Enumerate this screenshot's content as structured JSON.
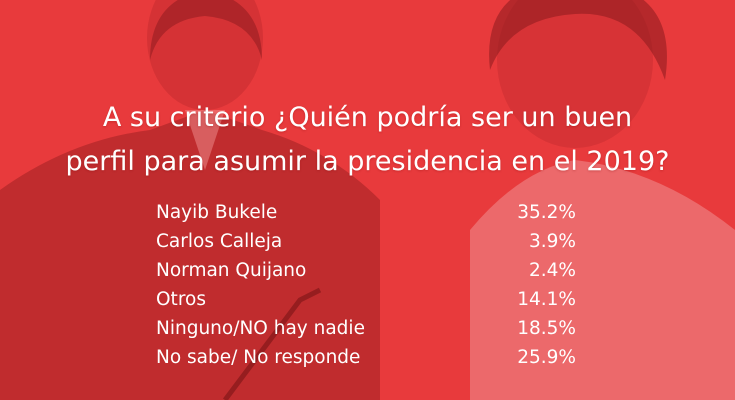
{
  "title_lines": [
    "A su criterio ¿Quién podría ser un buen",
    "perfil para asumir la presidencia en el 2019?"
  ],
  "colors": {
    "background": "#e83a3c",
    "text": "#ffffff"
  },
  "chart_data": {
    "type": "table",
    "title": "A su criterio ¿Quién podría ser un buen perfil para asumir la presidencia en el 2019?",
    "categories": [
      "Nayib Bukele",
      "Carlos Calleja",
      "Norman Quijano",
      "Otros",
      "Ninguno/NO hay nadie",
      "No sabe/ No responde"
    ],
    "values": [
      35.2,
      3.9,
      2.4,
      14.1,
      18.5,
      25.9
    ],
    "value_labels": [
      "35.2%",
      "3.9%",
      "2.4%",
      "14.1%",
      "18.5%",
      "25.9%"
    ]
  }
}
